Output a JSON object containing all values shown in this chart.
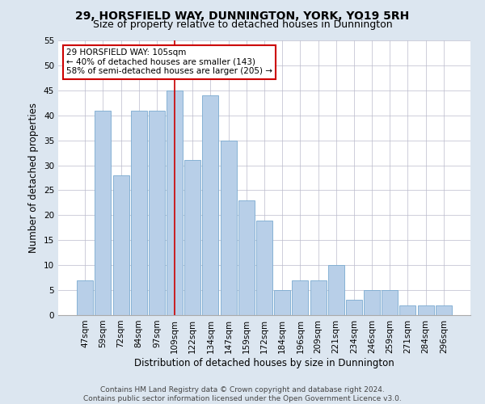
{
  "title": "29, HORSFIELD WAY, DUNNINGTON, YORK, YO19 5RH",
  "subtitle": "Size of property relative to detached houses in Dunnington",
  "xlabel": "Distribution of detached houses by size in Dunnington",
  "ylabel": "Number of detached properties",
  "categories": [
    "47sqm",
    "59sqm",
    "72sqm",
    "84sqm",
    "97sqm",
    "109sqm",
    "122sqm",
    "134sqm",
    "147sqm",
    "159sqm",
    "172sqm",
    "184sqm",
    "196sqm",
    "209sqm",
    "221sqm",
    "234sqm",
    "246sqm",
    "259sqm",
    "271sqm",
    "284sqm",
    "296sqm"
  ],
  "values": [
    7,
    41,
    28,
    41,
    41,
    45,
    31,
    44,
    35,
    23,
    19,
    5,
    7,
    7,
    10,
    3,
    5,
    5,
    2,
    2,
    2
  ],
  "bar_color": "#b8cfe8",
  "bar_edge_color": "#7aaad0",
  "vline_x_index": 5,
  "vline_color": "#cc0000",
  "annotation_text": "29 HORSFIELD WAY: 105sqm\n← 40% of detached houses are smaller (143)\n58% of semi-detached houses are larger (205) →",
  "annotation_box_color": "#ffffff",
  "annotation_box_edgecolor": "#cc0000",
  "ylim": [
    0,
    55
  ],
  "yticks": [
    0,
    5,
    10,
    15,
    20,
    25,
    30,
    35,
    40,
    45,
    50,
    55
  ],
  "footer": "Contains HM Land Registry data © Crown copyright and database right 2024.\nContains public sector information licensed under the Open Government Licence v3.0.",
  "background_color": "#dce6f0",
  "plot_background_color": "#ffffff",
  "title_fontsize": 10,
  "subtitle_fontsize": 9,
  "xlabel_fontsize": 8.5,
  "ylabel_fontsize": 8.5,
  "tick_fontsize": 7.5,
  "footer_fontsize": 6.5
}
